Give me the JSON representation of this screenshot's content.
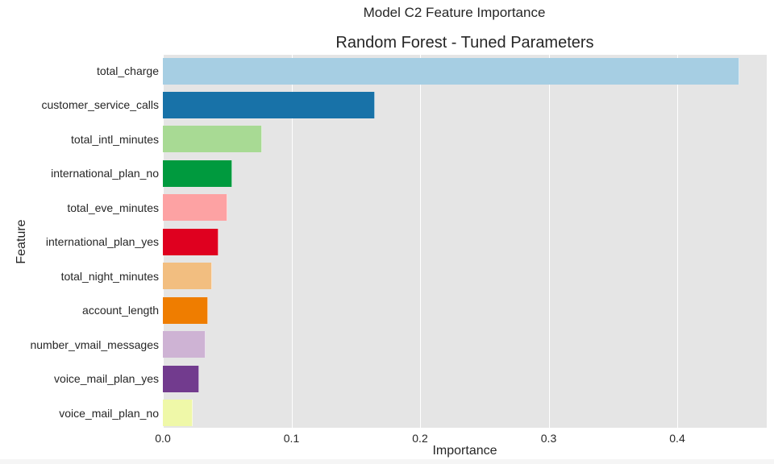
{
  "chart_data": {
    "type": "bar",
    "orientation": "horizontal",
    "suptitle": "Model C2 Feature Importance",
    "title": "Random Forest - Tuned Parameters",
    "xlabel": "Importance",
    "ylabel": "Feature",
    "xlim": [
      0,
      0.47
    ],
    "xticks": [
      "0.0",
      "0.1",
      "0.2",
      "0.3",
      "0.4"
    ],
    "grid": true,
    "categories": [
      "total_charge",
      "customer_service_calls",
      "total_intl_minutes",
      "international_plan_no",
      "total_eve_minutes",
      "international_plan_yes",
      "total_night_minutes",
      "account_length",
      "number_vmail_messages",
      "voice_mail_plan_yes",
      "voice_mail_plan_no"
    ],
    "values": [
      0.448,
      0.165,
      0.077,
      0.054,
      0.05,
      0.043,
      0.038,
      0.035,
      0.033,
      0.028,
      0.023
    ],
    "colors": [
      "#a6cee3",
      "#1f78b4",
      "#b2df8a",
      "#33a02c",
      "#fb9a99",
      "#e31a1c",
      "#fdbf6f",
      "#ff7f00",
      "#cab2d6",
      "#6a3d9a",
      "#ffff99"
    ]
  },
  "display_colors": [
    "#a6cee3",
    "#1872a8",
    "#a8da94",
    "#009a3e",
    "#fda2a3",
    "#df001f",
    "#f2be80",
    "#ef7d00",
    "#ceb3d4",
    "#723b8e",
    "#eff8a8"
  ]
}
